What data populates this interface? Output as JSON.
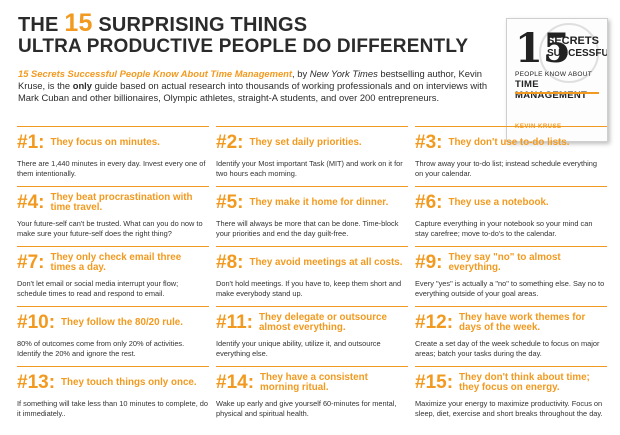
{
  "header": {
    "title_pre": "THE ",
    "title_number": "15",
    "title_post": " SURPRISING THINGS",
    "title_line2": "ULTRA PRODUCTIVE PEOPLE DO DIFFERENTLY"
  },
  "intro": {
    "book_title": "15 Secrets Successful People Know About Time Management",
    "part1": ", by ",
    "nyt": "New York Times",
    "part2": " bestselling author, Kevin Kruse, is the ",
    "only": "only",
    "part3": " guide based on actual research into thousands of working professionals and on interviews with Mark Cuban and other billionaires, Olympic athletes, straight-A students, and over 200 entrepreneurs."
  },
  "book_cover": {
    "number": "15",
    "word1": "SECRETS",
    "word2": "SUCCESSFUL",
    "word3": "PEOPLE KNOW ABOUT",
    "word4": "TIME MANAGEMENT",
    "author": "KEVIN KRUSE"
  },
  "tips": [
    {
      "num": "#1:",
      "title": "They focus on minutes.",
      "body": "There are 1,440 minutes in every day. Invest every one of them intentionally."
    },
    {
      "num": "#2:",
      "title": "They set daily priorities.",
      "body": "Identify your Most important Task (MIT) and work on it for two hours each morning."
    },
    {
      "num": "#3:",
      "title": "They don't use to-do lists.",
      "body": "Throw away your to-do list; instead schedule everything on your calendar."
    },
    {
      "num": "#4:",
      "title": "They beat procrastination with time travel.",
      "body": "Your future-self can't be trusted. What can you do now to make sure your future-self does the right thing?"
    },
    {
      "num": "#5:",
      "title": "They make it home for dinner.",
      "body": "There will always be more that can be done. Time-block your priorities and end the day guilt-free."
    },
    {
      "num": "#6:",
      "title": "They use a notebook.",
      "body": "Capture everything in your notebook so your mind can stay carefree; move to-do's to the calendar."
    },
    {
      "num": "#7:",
      "title": "They only check email three times a day.",
      "body": "Don't let email or social media interrupt your flow; schedule times to read and respond to email."
    },
    {
      "num": "#8:",
      "title": "They avoid meetings at all costs.",
      "body": "Don't hold meetings. If you have to, keep them short and make everybody stand up."
    },
    {
      "num": "#9:",
      "title": "They say \"no\" to almost everything.",
      "body": "Every \"yes\" is actually a \"no\" to something else. Say no to everything outside of your goal areas."
    },
    {
      "num": "#10:",
      "title": "They follow the 80/20 rule.",
      "body": "80% of outcomes come from only 20% of activities. Identify the 20% and ignore the rest."
    },
    {
      "num": "#11:",
      "title": "They delegate or outsource almost everything.",
      "body": "Identify your unique ability, utilize it, and outsource everything else."
    },
    {
      "num": "#12:",
      "title": "They have work themes for days of the week.",
      "body": "Create a set day of the week schedule to focus on major areas; batch your tasks during the day."
    },
    {
      "num": "#13:",
      "title": "They touch things only once.",
      "body": "If something will take less than 10 minutes to complete, do it immediately.."
    },
    {
      "num": "#14:",
      "title": "They have a consistent morning ritual.",
      "body": "Wake up early and give yourself 60-minutes for mental, physical and spiritual health."
    },
    {
      "num": "#15:",
      "title": "They don't think about time; they focus on energy.",
      "body": "Maximize your energy to maximize productivity. Focus on sleep, diet, exercise and short breaks throughout the day."
    }
  ],
  "colors": {
    "accent": "#f29a1f",
    "text": "#2b2b2b"
  }
}
